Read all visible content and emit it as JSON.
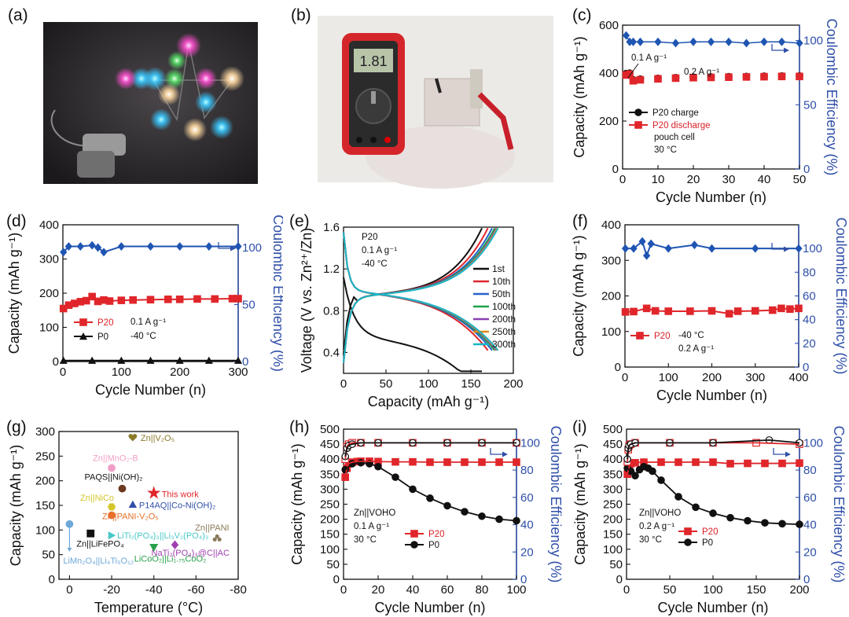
{
  "colors": {
    "black": "#111111",
    "red": "#e0262b",
    "blue": "#1f55b3",
    "axis_blue": "#2f4fa8"
  },
  "panels": {
    "a": {
      "label": "(a)"
    },
    "b": {
      "label": "(b)",
      "meter_reading": "1.81"
    }
  },
  "chart_data": [
    {
      "id": "c",
      "label": "(c)",
      "type": "scatter",
      "xlabel": "Cycle Number (n)",
      "ylabel": "Capacity (mAh g⁻¹)",
      "y2label": "Coulombic Efficiency (%)",
      "xlim": [
        0,
        50
      ],
      "ylim": [
        0,
        600
      ],
      "y2lim": [
        0,
        112
      ],
      "xticks": [
        0,
        10,
        20,
        30,
        40,
        50
      ],
      "yticks": [
        0,
        200,
        400,
        600
      ],
      "y2ticks": [
        0,
        50,
        100
      ],
      "annotations": [
        "0.1 A g⁻¹",
        "0.2 A g⁻¹",
        "pouch cell",
        "30 °C"
      ],
      "legend": [
        "P20 charge",
        "P20 discharge"
      ],
      "series": [
        {
          "name": "P20 charge",
          "axis": "y",
          "color": "black",
          "marker": "circle",
          "x": [
            1,
            2,
            3,
            5,
            10,
            15,
            20,
            25,
            30,
            35,
            40,
            45,
            50
          ],
          "y": [
            398,
            400,
            372,
            375,
            378,
            381,
            383,
            384,
            385,
            386,
            387,
            388,
            388
          ]
        },
        {
          "name": "P20 discharge",
          "axis": "y",
          "color": "red",
          "marker": "square",
          "x": [
            1,
            2,
            3,
            5,
            10,
            15,
            20,
            25,
            30,
            35,
            40,
            45,
            50
          ],
          "y": [
            392,
            396,
            368,
            372,
            376,
            379,
            381,
            382,
            383,
            384,
            385,
            386,
            386
          ]
        },
        {
          "name": "CE",
          "axis": "y2",
          "color": "blue",
          "marker": "diamond",
          "x": [
            1,
            2,
            3,
            5,
            10,
            15,
            20,
            25,
            30,
            35,
            40,
            45,
            50
          ],
          "y": [
            104,
            99,
            99,
            99,
            99,
            98,
            99,
            99,
            99,
            98,
            99,
            99,
            98
          ]
        }
      ]
    },
    {
      "id": "d",
      "label": "(d)",
      "type": "scatter",
      "xlabel": "Cycle Number (n)",
      "ylabel": "Capacity (mAh g⁻¹)",
      "y2label": "Coulombic Efficiency (%)",
      "xlim": [
        0,
        300
      ],
      "ylim": [
        0,
        400
      ],
      "y2lim": [
        0,
        120
      ],
      "xticks": [
        0,
        100,
        200,
        300
      ],
      "yticks": [
        0,
        100,
        200,
        300,
        400
      ],
      "y2ticks": [
        0,
        50,
        100
      ],
      "annotations": [
        "0.1 A g⁻¹",
        "-40 °C"
      ],
      "legend": [
        "P20",
        "P0"
      ],
      "series": [
        {
          "name": "P20",
          "axis": "y",
          "color": "red",
          "marker": "square",
          "x": [
            1,
            10,
            20,
            30,
            40,
            50,
            60,
            70,
            80,
            100,
            120,
            150,
            180,
            200,
            230,
            260,
            290,
            300
          ],
          "y": [
            155,
            165,
            170,
            175,
            178,
            190,
            176,
            180,
            177,
            179,
            180,
            181,
            182,
            182,
            183,
            183,
            184,
            184
          ]
        },
        {
          "name": "P0",
          "axis": "y",
          "color": "black",
          "marker": "triangle",
          "x": [
            1,
            50,
            100,
            150,
            200,
            250,
            300
          ],
          "y": [
            3,
            3,
            3,
            3,
            3,
            3,
            3
          ]
        },
        {
          "name": "CE",
          "axis": "y2",
          "color": "blue",
          "marker": "diamond",
          "x": [
            1,
            10,
            30,
            50,
            60,
            70,
            100,
            150,
            200,
            250,
            300
          ],
          "y": [
            96,
            101,
            101,
            102,
            100,
            96,
            101,
            101,
            101,
            101,
            101
          ]
        }
      ]
    },
    {
      "id": "e",
      "label": "(e)",
      "type": "line",
      "xlabel": "Capacity (mAh g⁻¹)",
      "ylabel": "Voltage (V vs. Zn²⁺/Zn)",
      "xlim": [
        0,
        200
      ],
      "ylim": [
        0.2,
        1.6
      ],
      "xticks": [
        0,
        50,
        100,
        150,
        200
      ],
      "yticks": [
        0.4,
        0.8,
        1.2,
        1.6
      ],
      "annotations": [
        "P20",
        "0.1 A g⁻¹",
        "-40 °C"
      ],
      "series": [
        {
          "name": "1st",
          "color": "#111111",
          "capmax": 163
        },
        {
          "name": "10th",
          "color": "#e0262b",
          "capmax": 170
        },
        {
          "name": "50th",
          "color": "#2563c9",
          "capmax": 175
        },
        {
          "name": "100th",
          "color": "#1aa34a",
          "capmax": 178
        },
        {
          "name": "200th",
          "color": "#8a3fb5",
          "capmax": 180
        },
        {
          "name": "250th",
          "color": "#e08a1e",
          "capmax": 181
        },
        {
          "name": "300th",
          "color": "#19b5c9",
          "capmax": 182
        }
      ]
    },
    {
      "id": "f",
      "label": "(f)",
      "type": "scatter",
      "xlabel": "Cycle Number (n)",
      "ylabel": "Capacity (mAh g⁻¹)",
      "y2label": "Coulombic Efficiency (%)",
      "xlim": [
        0,
        400
      ],
      "ylim": [
        0,
        400
      ],
      "y2lim": [
        0,
        120
      ],
      "xticks": [
        0,
        100,
        200,
        300,
        400
      ],
      "yticks": [
        0,
        100,
        200,
        300,
        400
      ],
      "y2ticks": [
        0,
        20,
        40,
        60,
        80,
        100
      ],
      "annotations": [
        "-40 °C",
        "0.2 A g⁻¹"
      ],
      "legend": [
        "P20"
      ],
      "series": [
        {
          "name": "P20",
          "axis": "y",
          "color": "red",
          "marker": "square",
          "x": [
            1,
            20,
            50,
            70,
            100,
            150,
            200,
            240,
            260,
            300,
            340,
            360,
            380,
            400
          ],
          "y": [
            155,
            156,
            165,
            158,
            157,
            157,
            158,
            150,
            157,
            158,
            160,
            165,
            163,
            165
          ]
        },
        {
          "name": "CE",
          "axis": "y2",
          "color": "blue",
          "marker": "diamond",
          "x": [
            1,
            20,
            40,
            50,
            60,
            100,
            160,
            200,
            300,
            400
          ],
          "y": [
            100,
            100,
            106,
            94,
            104,
            100,
            103,
            100,
            100,
            100
          ]
        }
      ]
    },
    {
      "id": "g",
      "label": "(g)",
      "type": "scatter",
      "xlabel": "Temperature (°C)",
      "ylabel": "Capacity (mAh g⁻¹)",
      "xlim": [
        5,
        -80
      ],
      "ylim": [
        0,
        300
      ],
      "x_reversed": true,
      "xticks": [
        0,
        -20,
        -40,
        -60,
        -80
      ],
      "yticks": [
        0,
        50,
        100,
        150,
        200,
        250,
        300
      ],
      "points": [
        {
          "name": "Zn||V₂O₅",
          "x": -30,
          "y": 287,
          "color": "#8a7a2a",
          "marker": "heart"
        },
        {
          "name": "Zn||MnO₂-B",
          "x": -20,
          "y": 226,
          "color": "#f0a0c8",
          "marker": "circle"
        },
        {
          "name": "PAQS||Ni(OH)₂",
          "x": -25,
          "y": 184,
          "color": "#6b3a1e",
          "marker": "circle"
        },
        {
          "name": "This work",
          "x": -40,
          "y": 175,
          "color": "#e0262b",
          "marker": "star"
        },
        {
          "name": "P14AQ||Co-Ni(OH)₂",
          "x": -30,
          "y": 152,
          "color": "#2f4fa8",
          "marker": "triangle"
        },
        {
          "name": "Zn||NiCo",
          "x": -20,
          "y": 147,
          "color": "#d4c62a",
          "marker": "hexagon"
        },
        {
          "name": "Zn||PANI-V₂O₅",
          "x": -20,
          "y": 130,
          "color": "#e8702a",
          "marker": "circle"
        },
        {
          "name": "Zn||PANI",
          "x": -70,
          "y": 83,
          "color": "#8a7a5a",
          "marker": "club"
        },
        {
          "name": "LiTi₂(PO₄)₃||Li₃V₂(PO₄)₃",
          "x": -20,
          "y": 89,
          "color": "#48c8c8",
          "marker": "tri-right"
        },
        {
          "name": "Zn||LiFePO₄",
          "x": -10,
          "y": 93,
          "color": "#111111",
          "marker": "square"
        },
        {
          "name": "LiMn₂O₄||Li₄Ti₅O₁₂",
          "x": 0,
          "y": 112,
          "color": "#6ea8d8",
          "marker": "circle"
        },
        {
          "name": "NaTi₂(PO₄)₃@C||AC",
          "x": -50,
          "y": 70,
          "color": "#a040b0",
          "marker": "diamond"
        },
        {
          "name": "LiCoO₂||Li₁.₇₅CoO₂",
          "x": -40,
          "y": 65,
          "color": "#2aa04a",
          "marker": "tri-down"
        }
      ]
    },
    {
      "id": "h",
      "label": "(h)",
      "type": "scatter",
      "xlabel": "Cycle Number (n)",
      "ylabel": "Capacity (mAh g⁻¹)",
      "y2label": "Coulombic Efficiency (%)",
      "xlim": [
        0,
        100
      ],
      "ylim": [
        0,
        500
      ],
      "y2lim": [
        0,
        110
      ],
      "xticks": [
        0,
        20,
        40,
        60,
        80,
        100
      ],
      "yticks": [
        0,
        50,
        100,
        150,
        200,
        250,
        300,
        350,
        400,
        450,
        500
      ],
      "y2ticks": [
        0,
        20,
        40,
        60,
        80,
        100
      ],
      "annotations": [
        "Zn||VOHO",
        "0.1 A g⁻¹",
        "30 °C"
      ],
      "legend": [
        "P20",
        "P0"
      ],
      "series": [
        {
          "name": "P20",
          "axis": "y",
          "color": "red",
          "marker": "square",
          "x": [
            1,
            2,
            3,
            5,
            8,
            10,
            15,
            20,
            30,
            40,
            50,
            60,
            70,
            80,
            90,
            100
          ],
          "y": [
            340,
            370,
            385,
            390,
            392,
            393,
            393,
            392,
            391,
            391,
            390,
            390,
            390,
            390,
            390,
            390
          ]
        },
        {
          "name": "P0",
          "axis": "y",
          "color": "black",
          "marker": "circle",
          "x": [
            1,
            5,
            10,
            15,
            20,
            30,
            40,
            50,
            60,
            70,
            80,
            90,
            100
          ],
          "y": [
            365,
            385,
            388,
            385,
            375,
            340,
            300,
            270,
            245,
            225,
            210,
            200,
            195
          ]
        },
        {
          "name": "CE P20",
          "axis": "y2",
          "color": "red",
          "marker": "open-square",
          "x": [
            1,
            2,
            3,
            5,
            10,
            20,
            40,
            60,
            80,
            100
          ],
          "y": [
            88,
            97,
            99,
            100,
            100,
            100,
            100,
            100,
            100,
            100
          ]
        },
        {
          "name": "CE P0",
          "axis": "y2",
          "color": "black",
          "marker": "open-circle",
          "x": [
            1,
            2,
            3,
            5,
            10,
            20,
            40,
            60,
            80,
            100
          ],
          "y": [
            90,
            96,
            98,
            99,
            100,
            100,
            100,
            100,
            100,
            100
          ]
        }
      ]
    },
    {
      "id": "i",
      "label": "(i)",
      "type": "scatter",
      "xlabel": "Cycle Number (n)",
      "ylabel": "Capacity (mAh g⁻¹)",
      "y2label": "Coulombic Efficiency (%)",
      "xlim": [
        0,
        200
      ],
      "ylim": [
        0,
        500
      ],
      "y2lim": [
        0,
        110
      ],
      "xticks": [
        0,
        50,
        100,
        150,
        200
      ],
      "yticks": [
        0,
        50,
        100,
        150,
        200,
        250,
        300,
        350,
        400,
        450,
        500
      ],
      "y2ticks": [
        0,
        20,
        40,
        60,
        80,
        100
      ],
      "annotations": [
        "Zn||VOHO",
        "0.2 A g⁻¹",
        "30 °C"
      ],
      "legend": [
        "P20",
        "P0"
      ],
      "series": [
        {
          "name": "P20",
          "axis": "y",
          "color": "red",
          "marker": "square",
          "x": [
            1,
            3,
            5,
            10,
            20,
            40,
            60,
            80,
            100,
            120,
            140,
            160,
            180,
            200
          ],
          "y": [
            350,
            375,
            385,
            388,
            390,
            390,
            390,
            390,
            390,
            385,
            386,
            386,
            386,
            387
          ]
        },
        {
          "name": "P0",
          "axis": "y",
          "color": "black",
          "marker": "circle",
          "x": [
            1,
            5,
            10,
            15,
            20,
            25,
            30,
            40,
            60,
            80,
            100,
            120,
            140,
            160,
            180,
            200
          ],
          "y": [
            370,
            360,
            345,
            365,
            375,
            370,
            360,
            330,
            275,
            240,
            220,
            205,
            195,
            188,
            185,
            183
          ]
        },
        {
          "name": "CE P20",
          "axis": "y2",
          "color": "red",
          "marker": "open-square",
          "x": [
            1,
            2,
            3,
            5,
            10,
            50,
            100,
            150,
            200
          ],
          "y": [
            86,
            95,
            98,
            99,
            100,
            100,
            100,
            100,
            99
          ]
        },
        {
          "name": "CE P0",
          "axis": "y2",
          "color": "black",
          "marker": "open-circle",
          "x": [
            1,
            2,
            3,
            5,
            10,
            50,
            100,
            165,
            200
          ],
          "y": [
            88,
            96,
            98,
            99,
            100,
            100,
            100,
            102,
            100
          ]
        }
      ]
    }
  ]
}
